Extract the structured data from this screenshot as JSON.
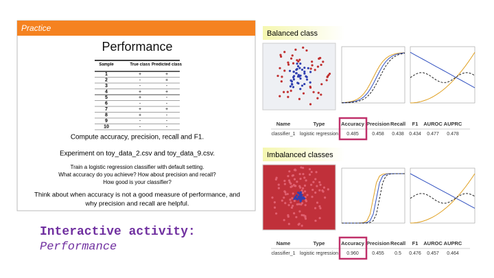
{
  "practice": {
    "header": "Practice",
    "title": "Performance",
    "table": {
      "columns": [
        "Sample",
        "True class",
        "Predicted class"
      ],
      "rows": [
        [
          "1",
          "+",
          "+"
        ],
        [
          "2",
          "-",
          "+"
        ],
        [
          "3",
          "-",
          "-"
        ],
        [
          "4",
          "+",
          "+"
        ],
        [
          "5",
          "+",
          "-"
        ],
        [
          "6",
          "-",
          "-"
        ],
        [
          "7",
          "+",
          "+"
        ],
        [
          "8",
          "+",
          "-"
        ],
        [
          "9",
          "-",
          "-"
        ],
        [
          "10",
          "-",
          "-"
        ]
      ]
    },
    "task": "Compute accuracy, precision, recall and F1.",
    "experiment": "Experiment on toy_data_2.csv and toy_data_9.csv.",
    "questions": [
      "Train a logistic regression classifier with default setting.",
      "What accuracy do you achieve? How about precision and recall?",
      "How good is your classifier?"
    ],
    "reflection": [
      "Think about when accuracy is not a good measure of performance, and",
      "why precision and recall are helpful."
    ]
  },
  "activity": {
    "label": "Interactive activity:",
    "name": "Performance"
  },
  "panels": [
    {
      "label": "Balanced class",
      "table": {
        "columns": [
          "Name",
          "Type",
          "Accuracy",
          "Precision",
          "Recall",
          "F1",
          "AUROC",
          "AUPRC"
        ],
        "row": [
          "classifier_1",
          "logistic regression",
          "0.485",
          "0.458",
          "0.438",
          "0.434",
          "0.477",
          "0.478"
        ]
      }
    },
    {
      "label": "Imbalanced classes",
      "table": {
        "columns": [
          "Name",
          "Type",
          "Accuracy",
          "Precision",
          "Recall",
          "F1",
          "AUROC",
          "AUPRC"
        ],
        "row": [
          "classifier_1",
          "logistic regression",
          "0.960",
          "0.455",
          "0.5",
          "0.476",
          "0.457",
          "0.464"
        ]
      }
    }
  ]
}
